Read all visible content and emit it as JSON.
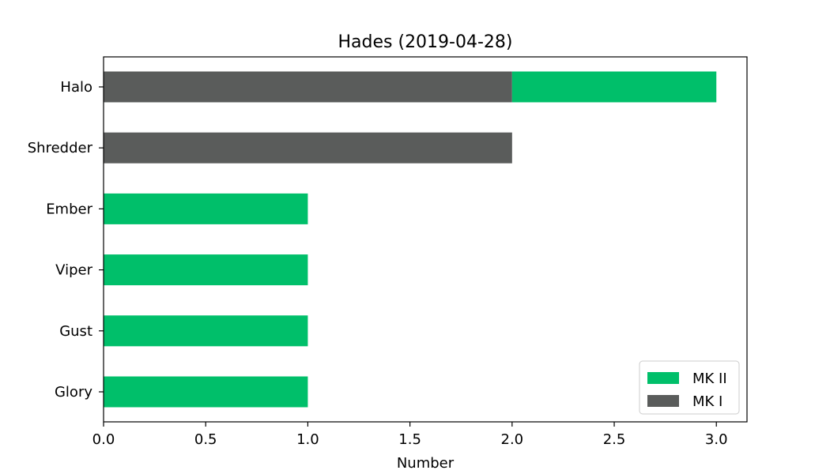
{
  "chart_data": {
    "type": "bar",
    "orientation": "horizontal",
    "stacked": true,
    "title": "Hades (2019-04-28)",
    "xlabel": "Number",
    "ylabel": "",
    "xlim": [
      0,
      3.15
    ],
    "xticks": [
      "0.0",
      "0.5",
      "1.0",
      "1.5",
      "2.0",
      "2.5",
      "3.0"
    ],
    "xtick_values": [
      0,
      0.5,
      1.0,
      1.5,
      2.0,
      2.5,
      3.0
    ],
    "categories": [
      "Glory",
      "Gust",
      "Viper",
      "Ember",
      "Shredder",
      "Halo"
    ],
    "series": [
      {
        "name": "MK I",
        "color": "#5a5c5b",
        "values": [
          0,
          0,
          0,
          0,
          2,
          2
        ]
      },
      {
        "name": "MK II",
        "color": "#00bf6a",
        "values": [
          1,
          1,
          1,
          1,
          0,
          1
        ]
      }
    ],
    "legend": {
      "placement": "lower-right",
      "entries": [
        {
          "name": "MK II",
          "color": "#00bf6a"
        },
        {
          "name": "MK I",
          "color": "#5a5c5b"
        }
      ]
    },
    "grid": false
  }
}
